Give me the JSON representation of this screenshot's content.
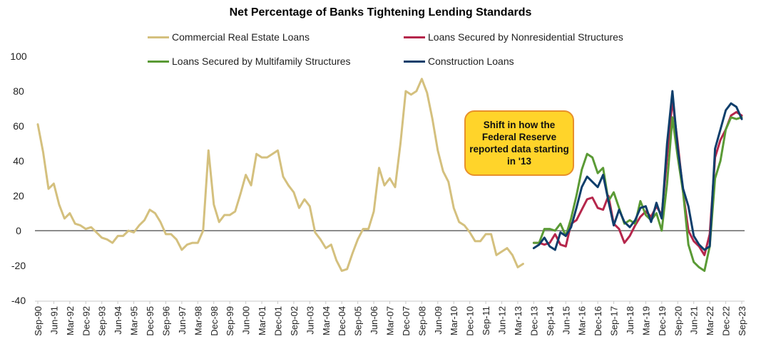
{
  "chart_data": {
    "type": "line",
    "title": "Net Percentage of Banks Tightening Lending Standards",
    "xlabel": "",
    "ylabel": "",
    "ylim": [
      -40,
      100
    ],
    "yticks": [
      -40,
      -20,
      0,
      20,
      40,
      60,
      80,
      100
    ],
    "x_start": "Sep-90",
    "x_end": "Sep-23",
    "xtick_labels": [
      "Sep-90",
      "Jun-91",
      "Mar-92",
      "Dec-92",
      "Sep-93",
      "Jun-94",
      "Mar-95",
      "Dec-95",
      "Sep-96",
      "Jun-97",
      "Mar-98",
      "Dec-98",
      "Sep-99",
      "Jun-00",
      "Mar-01",
      "Dec-01",
      "Sep-02",
      "Jun-03",
      "Mar-04",
      "Dec-04",
      "Sep-05",
      "Jun-06",
      "Mar-07",
      "Dec-07",
      "Sep-08",
      "Jun-09",
      "Mar-10",
      "Dec-10",
      "Sep-11",
      "Jun-12",
      "Mar-13",
      "Dec-13",
      "Sep-14",
      "Jun-15",
      "Mar-16",
      "Dec-16",
      "Sep-17",
      "Jun-18",
      "Mar-19",
      "Dec-19",
      "Sep-20",
      "Jun-21",
      "Mar-22",
      "Dec-22",
      "Sep-23"
    ],
    "grid": false,
    "zero_line": true,
    "legend_position": "top",
    "annotation": "Shift in how the Federal Reserve reported data starting in '13",
    "series": [
      {
        "name": "Commercial Real Estate Loans",
        "color": "#D4C07E",
        "points": [
          [
            "Sep-90",
            61
          ],
          [
            "Dec-90",
            45
          ],
          [
            "Mar-91",
            24
          ],
          [
            "Jun-91",
            27
          ],
          [
            "Sep-91",
            15
          ],
          [
            "Dec-91",
            7
          ],
          [
            "Mar-92",
            10
          ],
          [
            "Jun-92",
            4
          ],
          [
            "Sep-92",
            3
          ],
          [
            "Dec-92",
            1
          ],
          [
            "Mar-93",
            2
          ],
          [
            "Jun-93",
            -1
          ],
          [
            "Sep-93",
            -4
          ],
          [
            "Dec-93",
            -5
          ],
          [
            "Mar-94",
            -7
          ],
          [
            "Jun-94",
            -3
          ],
          [
            "Sep-94",
            -3
          ],
          [
            "Dec-94",
            0
          ],
          [
            "Mar-95",
            -1
          ],
          [
            "Jun-95",
            3
          ],
          [
            "Sep-95",
            6
          ],
          [
            "Dec-95",
            12
          ],
          [
            "Mar-96",
            10
          ],
          [
            "Jun-96",
            5
          ],
          [
            "Sep-96",
            -2
          ],
          [
            "Dec-96",
            -2
          ],
          [
            "Mar-97",
            -5
          ],
          [
            "Jun-97",
            -11
          ],
          [
            "Sep-97",
            -8
          ],
          [
            "Dec-97",
            -7
          ],
          [
            "Mar-98",
            -7
          ],
          [
            "Jun-98",
            0
          ],
          [
            "Sep-98",
            46
          ],
          [
            "Dec-98",
            15
          ],
          [
            "Mar-99",
            5
          ],
          [
            "Jun-99",
            9
          ],
          [
            "Sep-99",
            9
          ],
          [
            "Dec-99",
            11
          ],
          [
            "Mar-00",
            21
          ],
          [
            "Jun-00",
            32
          ],
          [
            "Sep-00",
            26
          ],
          [
            "Dec-00",
            44
          ],
          [
            "Mar-01",
            42
          ],
          [
            "Jun-01",
            42
          ],
          [
            "Sep-01",
            44
          ],
          [
            "Dec-01",
            46
          ],
          [
            "Mar-02",
            31
          ],
          [
            "Jun-02",
            26
          ],
          [
            "Sep-02",
            22
          ],
          [
            "Dec-02",
            13
          ],
          [
            "Mar-03",
            18
          ],
          [
            "Jun-03",
            14
          ],
          [
            "Sep-03",
            -1
          ],
          [
            "Dec-03",
            -5
          ],
          [
            "Mar-04",
            -10
          ],
          [
            "Jun-04",
            -8
          ],
          [
            "Sep-04",
            -17
          ],
          [
            "Dec-04",
            -23
          ],
          [
            "Mar-05",
            -22
          ],
          [
            "Jun-05",
            -13
          ],
          [
            "Sep-05",
            -5
          ],
          [
            "Dec-05",
            1
          ],
          [
            "Mar-06",
            1
          ],
          [
            "Jun-06",
            11
          ],
          [
            "Sep-06",
            36
          ],
          [
            "Dec-06",
            26
          ],
          [
            "Mar-07",
            30
          ],
          [
            "Jun-07",
            25
          ],
          [
            "Sep-07",
            50
          ],
          [
            "Dec-07",
            80
          ],
          [
            "Mar-08",
            78
          ],
          [
            "Jun-08",
            80
          ],
          [
            "Sep-08",
            87
          ],
          [
            "Dec-08",
            79
          ],
          [
            "Mar-09",
            64
          ],
          [
            "Jun-09",
            46
          ],
          [
            "Sep-09",
            34
          ],
          [
            "Dec-09",
            28
          ],
          [
            "Mar-10",
            13
          ],
          [
            "Jun-10",
            5
          ],
          [
            "Sep-10",
            3
          ],
          [
            "Dec-10",
            -1
          ],
          [
            "Mar-11",
            -6
          ],
          [
            "Jun-11",
            -6
          ],
          [
            "Sep-11",
            -2
          ],
          [
            "Dec-11",
            -2
          ],
          [
            "Mar-12",
            -14
          ],
          [
            "Jun-12",
            -12
          ],
          [
            "Sep-12",
            -10
          ],
          [
            "Dec-12",
            -14
          ],
          [
            "Mar-13",
            -21
          ],
          [
            "Jun-13",
            -19
          ]
        ]
      },
      {
        "name": "Loans Secured by Nonresidential Structures",
        "color": "#B5264B",
        "points": [
          [
            "Dec-13",
            -7
          ],
          [
            "Mar-14",
            -7
          ],
          [
            "Jun-14",
            -8
          ],
          [
            "Sep-14",
            -7
          ],
          [
            "Dec-14",
            -2
          ],
          [
            "Mar-15",
            -8
          ],
          [
            "Jun-15",
            -9
          ],
          [
            "Sep-15",
            4
          ],
          [
            "Dec-15",
            6
          ],
          [
            "Mar-16",
            12
          ],
          [
            "Jun-16",
            18
          ],
          [
            "Sep-16",
            19
          ],
          [
            "Dec-16",
            13
          ],
          [
            "Mar-17",
            12
          ],
          [
            "Jun-17",
            20
          ],
          [
            "Sep-17",
            4
          ],
          [
            "Dec-17",
            1
          ],
          [
            "Mar-18",
            -7
          ],
          [
            "Jun-18",
            -3
          ],
          [
            "Sep-18",
            3
          ],
          [
            "Dec-18",
            8
          ],
          [
            "Mar-19",
            11
          ],
          [
            "Jun-19",
            8
          ],
          [
            "Sep-19",
            14
          ],
          [
            "Dec-19",
            9
          ],
          [
            "Mar-20",
            42
          ],
          [
            "Jun-20",
            75
          ],
          [
            "Sep-20",
            50
          ],
          [
            "Dec-20",
            22
          ],
          [
            "Mar-21",
            0
          ],
          [
            "Jun-21",
            -6
          ],
          [
            "Sep-21",
            -9
          ],
          [
            "Dec-21",
            -14
          ],
          [
            "Mar-22",
            -2
          ],
          [
            "Jun-22",
            42
          ],
          [
            "Sep-22",
            52
          ],
          [
            "Dec-22",
            58
          ],
          [
            "Mar-23",
            66
          ],
          [
            "Jun-23",
            68
          ],
          [
            "Sep-23",
            66
          ]
        ]
      },
      {
        "name": "Loans Secured by Multifamily Structures",
        "color": "#5A9A35",
        "points": [
          [
            "Dec-13",
            -7
          ],
          [
            "Mar-14",
            -7
          ],
          [
            "Jun-14",
            1
          ],
          [
            "Sep-14",
            1
          ],
          [
            "Dec-14",
            0
          ],
          [
            "Mar-15",
            4
          ],
          [
            "Jun-15",
            -3
          ],
          [
            "Sep-15",
            7
          ],
          [
            "Dec-15",
            20
          ],
          [
            "Mar-16",
            35
          ],
          [
            "Jun-16",
            44
          ],
          [
            "Sep-16",
            42
          ],
          [
            "Dec-16",
            33
          ],
          [
            "Mar-17",
            36
          ],
          [
            "Jun-17",
            17
          ],
          [
            "Sep-17",
            22
          ],
          [
            "Dec-17",
            13
          ],
          [
            "Mar-18",
            4
          ],
          [
            "Jun-18",
            6
          ],
          [
            "Sep-18",
            4
          ],
          [
            "Dec-18",
            17
          ],
          [
            "Mar-19",
            9
          ],
          [
            "Jun-19",
            6
          ],
          [
            "Sep-19",
            10
          ],
          [
            "Dec-19",
            0
          ],
          [
            "Mar-20",
            27
          ],
          [
            "Jun-20",
            65
          ],
          [
            "Sep-20",
            42
          ],
          [
            "Dec-20",
            22
          ],
          [
            "Mar-21",
            -8
          ],
          [
            "Jun-21",
            -18
          ],
          [
            "Sep-21",
            -21
          ],
          [
            "Dec-21",
            -23
          ],
          [
            "Mar-22",
            -9
          ],
          [
            "Jun-22",
            30
          ],
          [
            "Sep-22",
            40
          ],
          [
            "Dec-22",
            58
          ],
          [
            "Mar-23",
            65
          ],
          [
            "Jun-23",
            64
          ],
          [
            "Sep-23",
            65
          ]
        ]
      },
      {
        "name": "Construction Loans",
        "color": "#0E3E6B",
        "points": [
          [
            "Dec-13",
            -10
          ],
          [
            "Mar-14",
            -8
          ],
          [
            "Jun-14",
            -4
          ],
          [
            "Sep-14",
            -9
          ],
          [
            "Dec-14",
            -11
          ],
          [
            "Mar-15",
            -1
          ],
          [
            "Jun-15",
            -3
          ],
          [
            "Sep-15",
            2
          ],
          [
            "Dec-15",
            13
          ],
          [
            "Mar-16",
            25
          ],
          [
            "Jun-16",
            31
          ],
          [
            "Sep-16",
            28
          ],
          [
            "Dec-16",
            25
          ],
          [
            "Mar-17",
            32
          ],
          [
            "Jun-17",
            17
          ],
          [
            "Sep-17",
            3
          ],
          [
            "Dec-17",
            12
          ],
          [
            "Mar-18",
            5
          ],
          [
            "Jun-18",
            2
          ],
          [
            "Sep-18",
            6
          ],
          [
            "Dec-18",
            13
          ],
          [
            "Mar-19",
            14
          ],
          [
            "Jun-19",
            5
          ],
          [
            "Sep-19",
            16
          ],
          [
            "Dec-19",
            7
          ],
          [
            "Mar-20",
            50
          ],
          [
            "Jun-20",
            80
          ],
          [
            "Sep-20",
            47
          ],
          [
            "Dec-20",
            24
          ],
          [
            "Mar-21",
            14
          ],
          [
            "Jun-21",
            -3
          ],
          [
            "Sep-21",
            -8
          ],
          [
            "Dec-21",
            -11
          ],
          [
            "Mar-22",
            -9
          ],
          [
            "Jun-22",
            47
          ],
          [
            "Sep-22",
            58
          ],
          [
            "Dec-22",
            69
          ],
          [
            "Mar-23",
            73
          ],
          [
            "Jun-23",
            71
          ],
          [
            "Sep-23",
            64
          ]
        ]
      }
    ]
  }
}
